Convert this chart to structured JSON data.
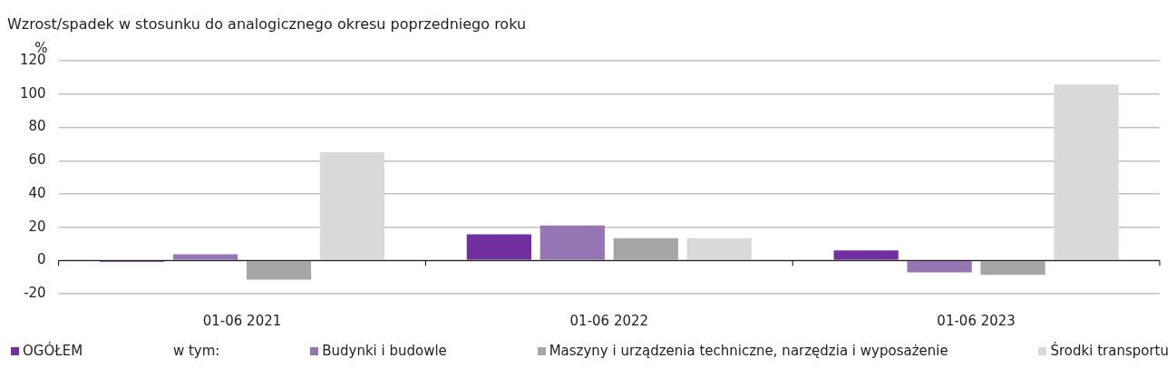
{
  "chart_data": {
    "type": "bar",
    "title": "Wzrost/spadek w stosunku do analogicznego okresu poprzedniego roku",
    "ylabel": "%",
    "categories": [
      "01-06 2021",
      "01-06 2022",
      "01-06 2023"
    ],
    "series": [
      {
        "name": "OGÓŁEM",
        "color": "#7030a0",
        "values": [
          -0.8,
          15.7,
          6
        ]
      },
      {
        "name": "Budynki i budowle",
        "color": "#9576b3",
        "values": [
          3.7,
          21,
          -7.2
        ]
      },
      {
        "name": "Maszyny i urządzenia techniczne, narzędzia i wyposażenie",
        "color": "#a6a6a6",
        "values": [
          -11.6,
          13.4,
          -8.7
        ]
      },
      {
        "name": "Środki transportu",
        "color": "#d9d9d9",
        "values": [
          65,
          13.4,
          105.8
        ]
      }
    ],
    "annotations": [
      "w tym:"
    ],
    "ylim": [
      -20,
      120
    ],
    "yticks": [
      -20,
      0,
      20,
      40,
      60,
      80,
      100,
      120
    ],
    "grid": "y",
    "legend": "bottom"
  }
}
